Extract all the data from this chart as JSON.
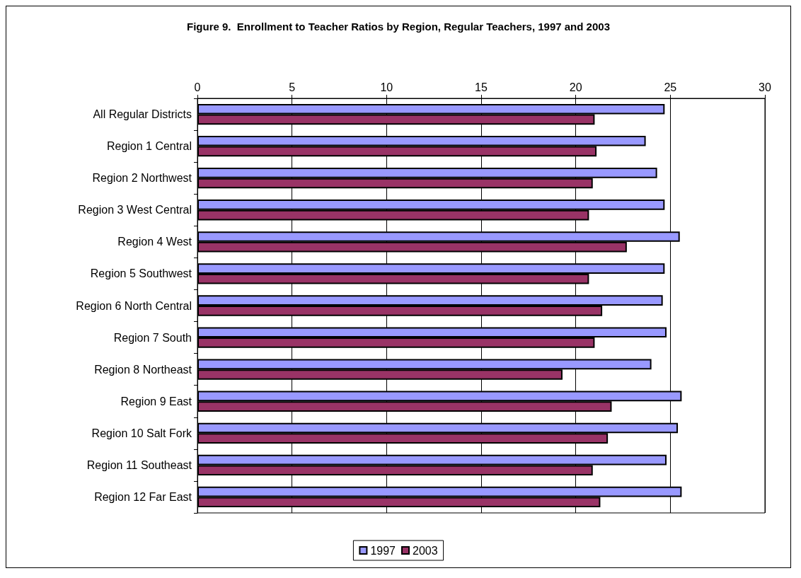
{
  "chart_data": {
    "type": "bar",
    "orientation": "horizontal",
    "title": "Figure 9.  Enrollment to Teacher Ratios by Region, Regular Teachers, 1997 and 2003",
    "categories": [
      "All Regular Districts",
      "Region 1 Central",
      "Region 2 Northwest",
      "Region 3 West Central",
      "Region 4 West",
      "Region 5 Southwest",
      "Region 6 North Central",
      "Region 7 South",
      "Region 8 Northeast",
      "Region 9 East",
      "Region 10 Salt Fork",
      "Region 11 Southeast",
      "Region 12 Far East"
    ],
    "series": [
      {
        "name": "1997",
        "color": "#9999ff",
        "values": [
          24.7,
          23.7,
          24.3,
          24.7,
          25.5,
          24.7,
          24.6,
          24.8,
          24.0,
          25.6,
          25.4,
          24.8,
          25.6
        ]
      },
      {
        "name": "2003",
        "color": "#993366",
        "values": [
          21.0,
          21.1,
          20.9,
          20.7,
          22.7,
          20.7,
          21.4,
          21.0,
          19.3,
          21.9,
          21.7,
          20.9,
          21.3
        ]
      }
    ],
    "xlim": [
      0,
      30
    ],
    "xticks": [
      0,
      5,
      10,
      15,
      20,
      25,
      30
    ],
    "grid": "x",
    "legend": "bottom"
  }
}
